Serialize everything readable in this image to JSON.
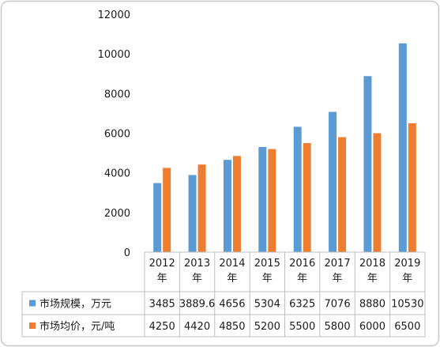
{
  "chart_data": {
    "type": "bar",
    "categories": [
      "2012年",
      "2013年",
      "2014年",
      "2015年",
      "2016年",
      "2017年",
      "2018年",
      "2019年"
    ],
    "category_lines": [
      [
        "2012",
        "年"
      ],
      [
        "2013",
        "年"
      ],
      [
        "2014",
        "年"
      ],
      [
        "2015",
        "年"
      ],
      [
        "2016",
        "年"
      ],
      [
        "2017",
        "年"
      ],
      [
        "2018",
        "年"
      ],
      [
        "2019",
        "年"
      ]
    ],
    "series": [
      {
        "name": "市场规模，万元",
        "color": "#5b9bd5",
        "values": [
          3485,
          3889.6,
          4656,
          5304,
          6325,
          7076,
          8880,
          10530
        ],
        "value_labels": [
          "3485",
          "3889.6",
          "4656",
          "5304",
          "6325",
          "7076",
          "8880",
          "10530"
        ]
      },
      {
        "name": "市场均价，元/吨",
        "color": "#ed7d31",
        "values": [
          4250,
          4420,
          4850,
          5200,
          5500,
          5800,
          6000,
          6500
        ],
        "value_labels": [
          "4250",
          "4420",
          "4850",
          "5200",
          "5500",
          "5800",
          "6000",
          "6500"
        ]
      }
    ],
    "ylim": [
      0,
      12000
    ],
    "yticks": [
      "0",
      "2000",
      "4000",
      "6000",
      "8000",
      "10000",
      "12000"
    ],
    "ytick_values": [
      0,
      2000,
      4000,
      6000,
      8000,
      10000,
      12000
    ],
    "grid": false,
    "legend": "data table below chart"
  }
}
